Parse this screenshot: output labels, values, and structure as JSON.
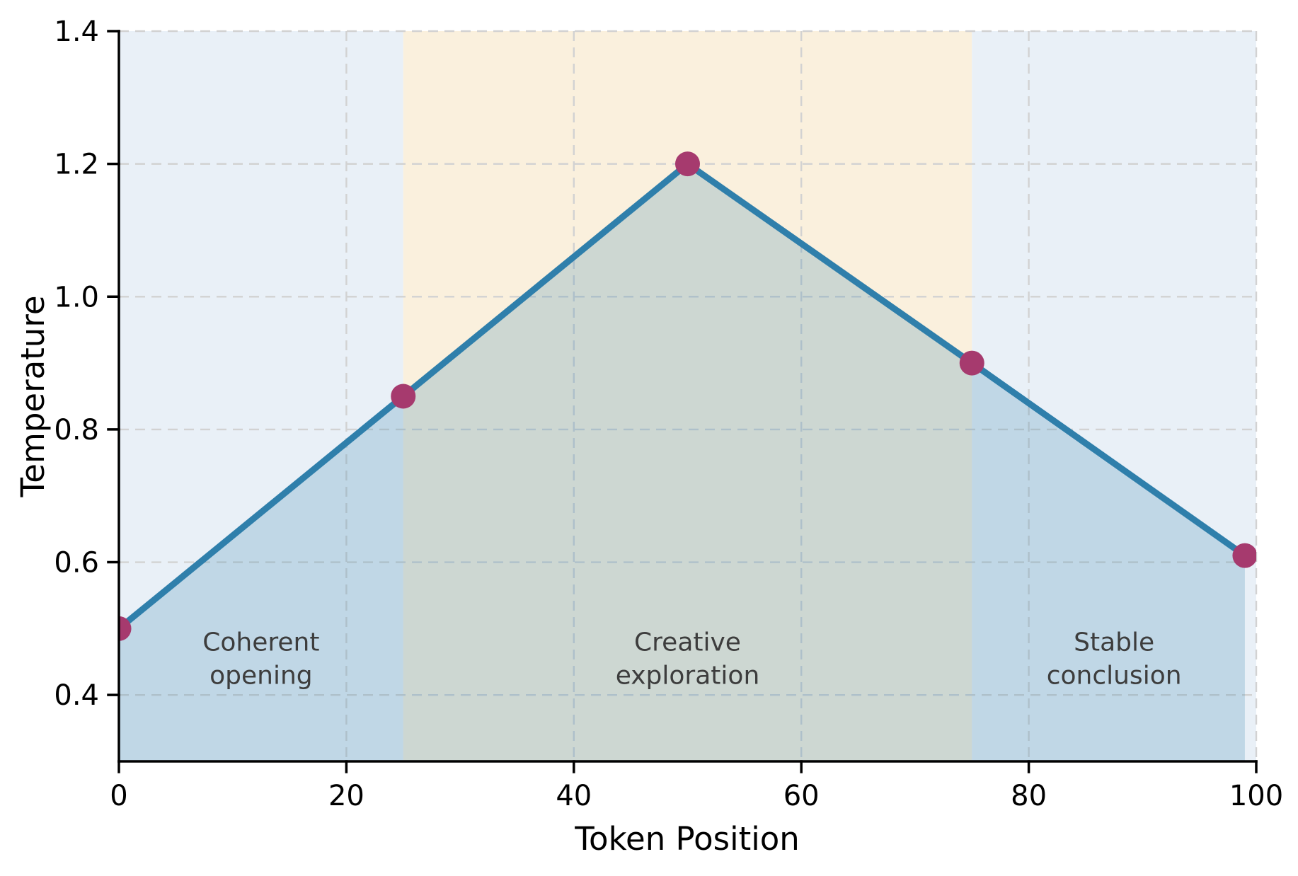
{
  "chart_data": {
    "type": "line",
    "title": "",
    "xlabel": "Token Position",
    "ylabel": "Temperature",
    "x": [
      0,
      25,
      50,
      75,
      99
    ],
    "y": [
      0.5,
      0.85,
      1.2,
      0.9,
      0.61
    ],
    "xlim": [
      0,
      100
    ],
    "ylim": [
      0.3,
      1.4
    ],
    "xticks": [
      0,
      20,
      40,
      60,
      80,
      100
    ],
    "xtick_labels": [
      "0",
      "20",
      "40",
      "60",
      "80",
      "100"
    ],
    "yticks": [
      0.4,
      0.6,
      0.8,
      1.0,
      1.2,
      1.4
    ],
    "ytick_labels": [
      "0.4",
      "0.6",
      "0.8",
      "1.0",
      "1.2",
      "1.4"
    ],
    "grid": true,
    "grid_style": "dashed",
    "legend": "none",
    "regions": [
      {
        "label": "Coherent opening",
        "label_lines": [
          "Coherent",
          "opening"
        ],
        "x0": 0,
        "x1": 25,
        "color": "#e9f0f7",
        "label_x": 12.5,
        "label_y": 0.455
      },
      {
        "label": "Creative exploration",
        "label_lines": [
          "Creative",
          "exploration"
        ],
        "x0": 25,
        "x1": 75,
        "color": "#faf0dd",
        "label_x": 50,
        "label_y": 0.455
      },
      {
        "label": "Stable conclusion",
        "label_lines": [
          "Stable",
          "conclusion"
        ],
        "x0": 75,
        "x1": 100,
        "color": "#e9f0f7",
        "label_x": 87.5,
        "label_y": 0.455
      }
    ],
    "colors": {
      "line": "#2f7fab",
      "marker": "#a63a6e",
      "fill": "#2f7fab",
      "fill_opacity": 0.22,
      "grid": "#d2d2d2",
      "axis": "#000000",
      "tick_label": "#000000",
      "region_label": "#3d3d3d",
      "background": "#ffffff"
    }
  }
}
